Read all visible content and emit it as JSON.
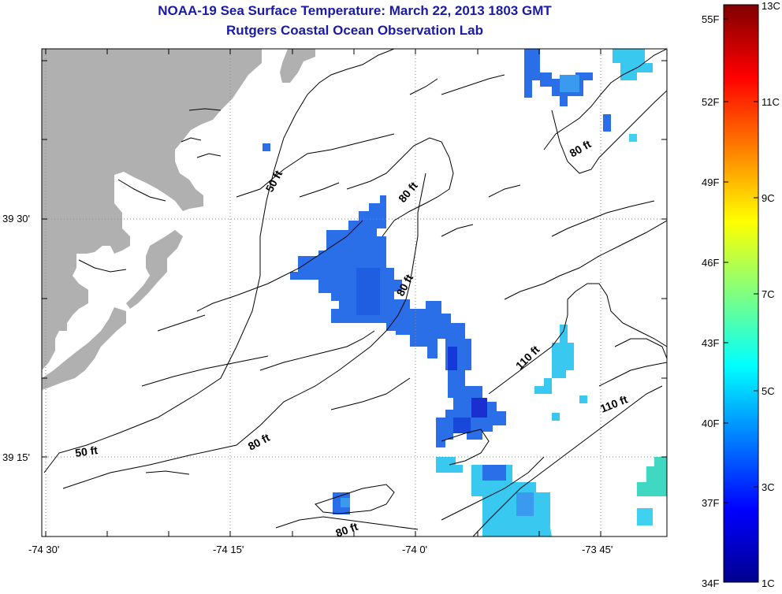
{
  "title": {
    "line1": "NOAA-19 Sea Surface Temperature:  March 22, 2013 1803 GMT",
    "line2": "Rutgers Coastal Ocean Observation Lab"
  },
  "map": {
    "lat_labels": [
      "39 30'",
      "39 15'"
    ],
    "lon_labels": [
      "-74 30'",
      "-74 15'",
      "-74 0'",
      "-73 45'"
    ],
    "contour_labels": [
      "50 ft",
      "80 ft",
      "80 ft",
      "80 ft",
      "110 ft",
      "110 ft",
      "80 ft",
      "50 ft",
      "80 ft"
    ]
  },
  "colorbar": {
    "fahrenheit_labels": [
      "55F",
      "52F",
      "49F",
      "46F",
      "43F",
      "40F",
      "37F",
      "34F"
    ],
    "celsius_labels": [
      "13C",
      "11C",
      "9C",
      "7C",
      "5C",
      "3C",
      "1C"
    ],
    "min_c": 1,
    "max_c": 13
  },
  "colors": {
    "title": "#1a1aa6",
    "land": "#b0b0b0",
    "sst_blue": "#2a6ee8"
  }
}
